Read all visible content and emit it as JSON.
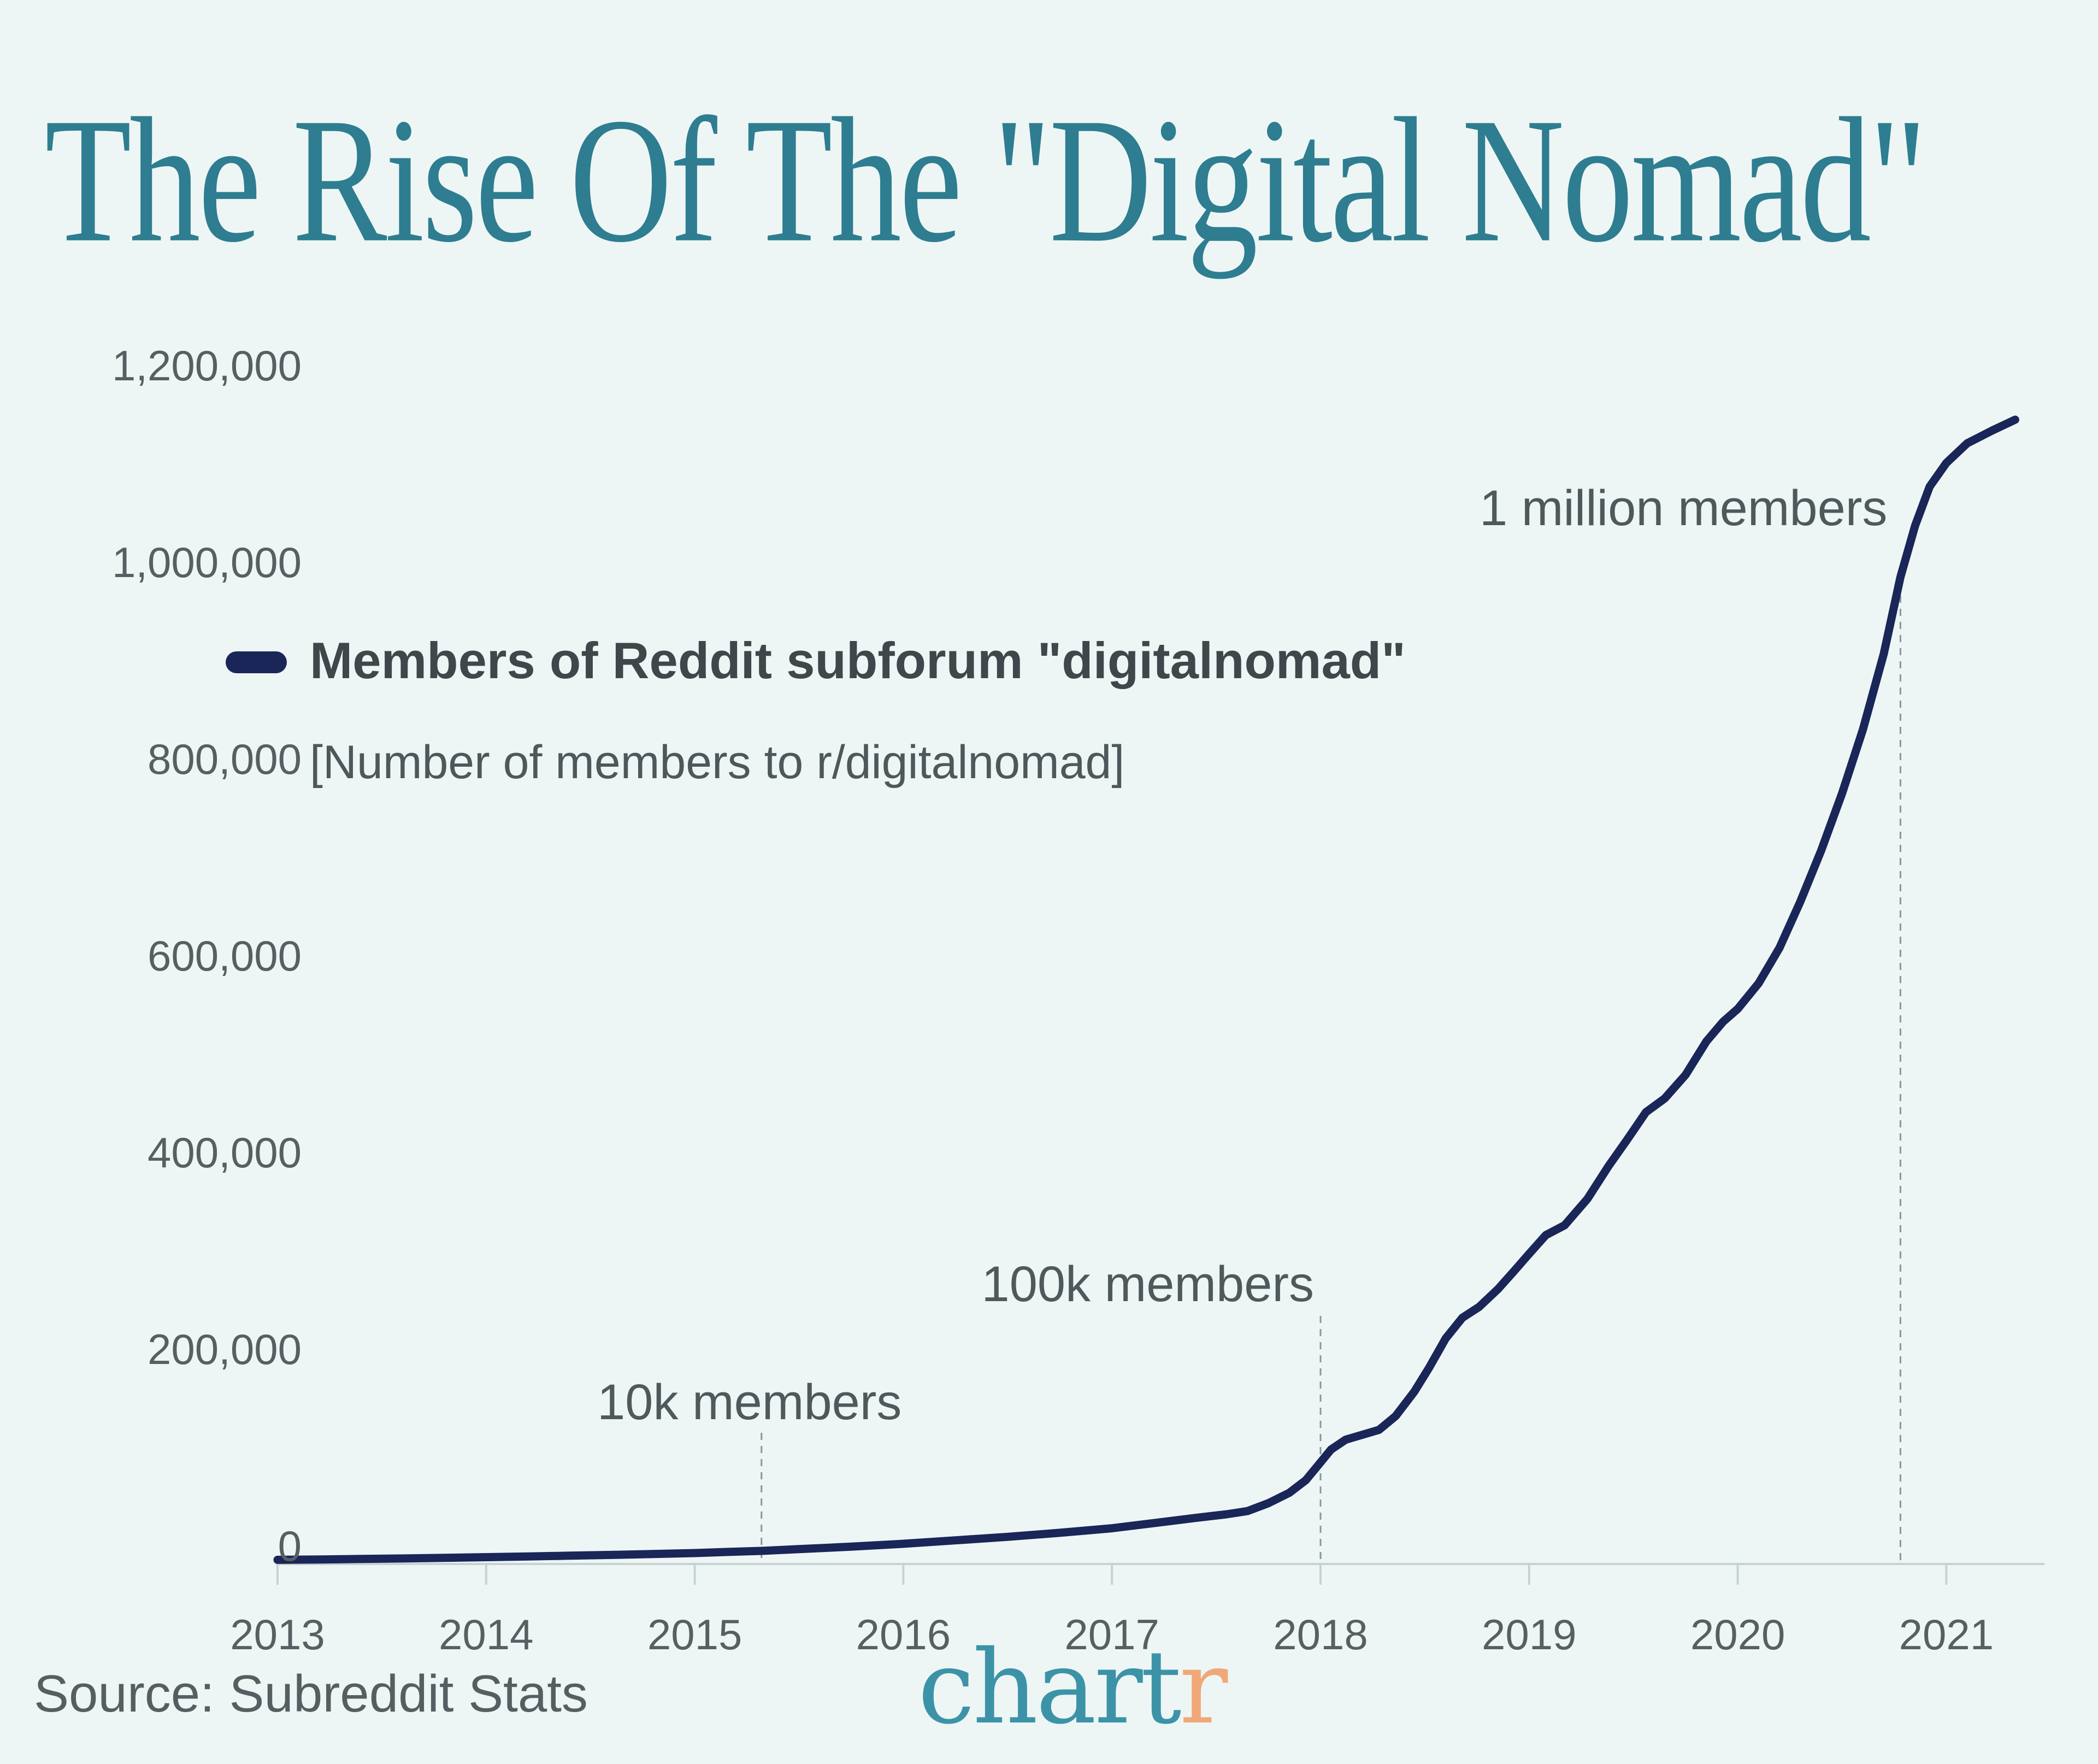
{
  "page": {
    "background": "#EDF6F5"
  },
  "header": {
    "title": "The Rise Of The \"Digital Nomad\"",
    "title_color": "#2E7D90"
  },
  "legend": {
    "series_label": "Members of Reddit subforum \"digitalnomad\"",
    "series_sublabel": "[Number of members to r/digitalnomad]",
    "swatch_color": "#1A2558"
  },
  "footer": {
    "source": "Source: Subreddit Stats",
    "logo": {
      "text_primary": "chart",
      "text_accent": "r",
      "primary_color": "#3C93A8",
      "accent_color": "#F1A878"
    }
  },
  "chart_data": {
    "type": "line",
    "title": "The Rise Of The \"Digital Nomad\"",
    "xlabel": "",
    "ylabel": "",
    "grid": false,
    "legend_position": "upper-left-inside",
    "xlim": [
      2013,
      2021.45
    ],
    "ylim": [
      0,
      1240000
    ],
    "x_ticks": [
      2013,
      2014,
      2015,
      2016,
      2017,
      2018,
      2019,
      2020,
      2021
    ],
    "y_ticks": [
      {
        "label": "1,200,000",
        "value": 1200000
      },
      {
        "label": "1,000,000",
        "value": 1000000
      },
      {
        "label": "800,000",
        "value": 800000
      },
      {
        "label": "600,000",
        "value": 600000
      },
      {
        "label": "400,000",
        "value": 400000
      },
      {
        "label": "200,000",
        "value": 200000
      },
      {
        "label": "0",
        "value": 0
      }
    ],
    "annotations": [
      {
        "label": "10k members",
        "year": 2015.32,
        "value": 10000
      },
      {
        "label": "100k members",
        "year": 2018.0,
        "value": 100000
      },
      {
        "label": "1 million members",
        "year": 2020.78,
        "value": 1000000
      }
    ],
    "series": [
      {
        "name": "Members of Reddit subforum \"digitalnomad\"",
        "color": "#1A2558",
        "points": [
          [
            2013.0,
            900
          ],
          [
            2013.2,
            1300
          ],
          [
            2013.4,
            1800
          ],
          [
            2013.6,
            2300
          ],
          [
            2013.8,
            2900
          ],
          [
            2014.0,
            3600
          ],
          [
            2014.2,
            4300
          ],
          [
            2014.4,
            5100
          ],
          [
            2014.6,
            5900
          ],
          [
            2014.8,
            6800
          ],
          [
            2015.0,
            7800
          ],
          [
            2015.15,
            8900
          ],
          [
            2015.32,
            10000
          ],
          [
            2015.5,
            11800
          ],
          [
            2015.75,
            14300
          ],
          [
            2016.0,
            17200
          ],
          [
            2016.25,
            20700
          ],
          [
            2016.5,
            24300
          ],
          [
            2016.75,
            28400
          ],
          [
            2017.0,
            33000
          ],
          [
            2017.2,
            38200
          ],
          [
            2017.4,
            43500
          ],
          [
            2017.55,
            47200
          ],
          [
            2017.65,
            50500
          ],
          [
            2017.75,
            58500
          ],
          [
            2017.85,
            69000
          ],
          [
            2017.93,
            82000
          ],
          [
            2018.0,
            100000
          ],
          [
            2018.05,
            113000
          ],
          [
            2018.12,
            123000
          ],
          [
            2018.2,
            128000
          ],
          [
            2018.28,
            133000
          ],
          [
            2018.36,
            147000
          ],
          [
            2018.45,
            172000
          ],
          [
            2018.52,
            196000
          ],
          [
            2018.6,
            226000
          ],
          [
            2018.68,
            247000
          ],
          [
            2018.76,
            258000
          ],
          [
            2018.85,
            276000
          ],
          [
            2018.93,
            295000
          ],
          [
            2019.0,
            312000
          ],
          [
            2019.08,
            331000
          ],
          [
            2019.17,
            341000
          ],
          [
            2019.28,
            368000
          ],
          [
            2019.38,
            401000
          ],
          [
            2019.47,
            428000
          ],
          [
            2019.56,
            456000
          ],
          [
            2019.65,
            470000
          ],
          [
            2019.75,
            494000
          ],
          [
            2019.85,
            528000
          ],
          [
            2019.93,
            548000
          ],
          [
            2020.0,
            561000
          ],
          [
            2020.1,
            587000
          ],
          [
            2020.2,
            623000
          ],
          [
            2020.3,
            670000
          ],
          [
            2020.4,
            722000
          ],
          [
            2020.5,
            780000
          ],
          [
            2020.6,
            845000
          ],
          [
            2020.7,
            922000
          ],
          [
            2020.78,
            1000000
          ],
          [
            2020.85,
            1052000
          ],
          [
            2020.92,
            1092000
          ],
          [
            2021.0,
            1116000
          ],
          [
            2021.1,
            1136000
          ],
          [
            2021.22,
            1149000
          ],
          [
            2021.33,
            1160000
          ]
        ]
      }
    ]
  }
}
